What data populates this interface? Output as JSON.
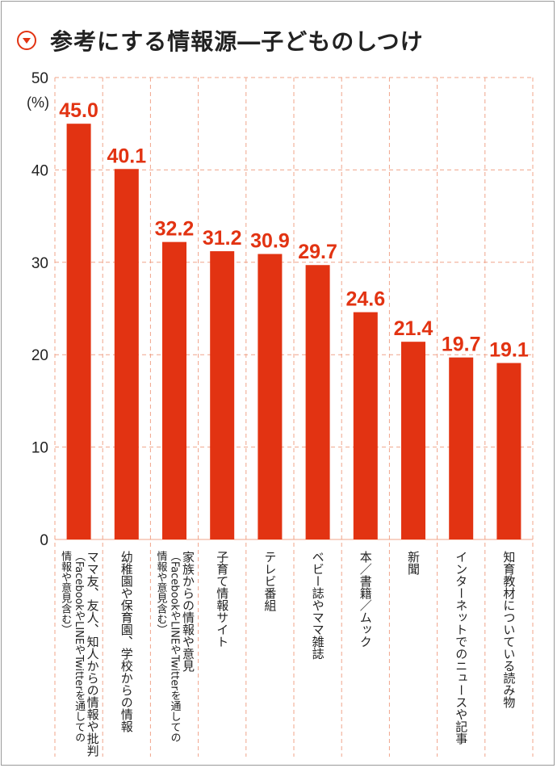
{
  "header": {
    "title": "参考にする情報源―子どものしつけ",
    "icon": "circle-chevron-down-icon"
  },
  "colors": {
    "bar": "#e23312",
    "accent": "#e23312",
    "grid": "#f0a48a",
    "text": "#222222"
  },
  "chart_data": {
    "type": "bar",
    "title": "参考にする情報源―子どものしつけ",
    "ylabel": "(%)",
    "ylim": [
      0,
      50
    ],
    "yticks": [
      "0",
      "10",
      "20",
      "30",
      "40",
      "50"
    ],
    "grid": true,
    "categories": [
      [
        "ママ友、友人、知人からの情報や批判",
        "（FacebookやLINEやTwitterを通しての",
        "情報や意見含む）"
      ],
      [
        "幼稚園や保育園、学校からの情報"
      ],
      [
        "家族からの情報や意見",
        "（FacebookやLINEやTwitterを通しての",
        "情報や意見含む）"
      ],
      [
        "子育て情報サイト"
      ],
      [
        "テレビ番組"
      ],
      [
        "ベビー誌やママ雑誌"
      ],
      [
        "本／書籍／ムック"
      ],
      [
        "新聞"
      ],
      [
        "インターネットでのニュースや記事"
      ],
      [
        "知育教材についている読み物"
      ]
    ],
    "values": [
      45.0,
      40.1,
      32.2,
      31.2,
      30.9,
      29.7,
      24.6,
      21.4,
      19.7,
      19.1
    ],
    "value_labels": [
      "45.0",
      "40.1",
      "32.2",
      "31.2",
      "30.9",
      "29.7",
      "24.6",
      "21.4",
      "19.7",
      "19.1"
    ]
  }
}
